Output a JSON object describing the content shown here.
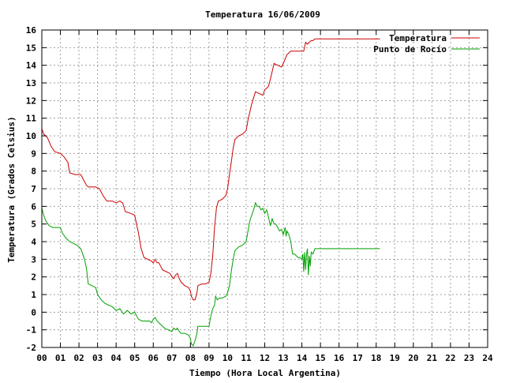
{
  "chart_data": {
    "type": "line",
    "title": "Temperatura 16/06/2009",
    "xlabel": "Tiempo (Hora Local Argentina)",
    "ylabel": "Temperatura (Grados Celsius)",
    "xlim": [
      0,
      24
    ],
    "ylim": [
      -2,
      16
    ],
    "x_ticks": [
      "00",
      "01",
      "02",
      "03",
      "04",
      "05",
      "06",
      "07",
      "08",
      "09",
      "10",
      "11",
      "12",
      "13",
      "14",
      "15",
      "16",
      "17",
      "18",
      "19",
      "20",
      "21",
      "22",
      "23",
      "24"
    ],
    "y_ticks": [
      "-2",
      "-1",
      "0",
      "1",
      "2",
      "3",
      "4",
      "5",
      "6",
      "7",
      "8",
      "9",
      "10",
      "11",
      "12",
      "13",
      "14",
      "15",
      "16"
    ],
    "grid": true,
    "legend_position": "top-right",
    "series": [
      {
        "name": "Temperatura",
        "color": "#cc0000",
        "points": [
          [
            0.0,
            10.4
          ],
          [
            0.1,
            10.1
          ],
          [
            0.3,
            9.9
          ],
          [
            0.5,
            9.4
          ],
          [
            0.7,
            9.1
          ],
          [
            1.0,
            9.0
          ],
          [
            1.2,
            8.8
          ],
          [
            1.4,
            8.5
          ],
          [
            1.5,
            7.9
          ],
          [
            1.8,
            7.8
          ],
          [
            2.1,
            7.8
          ],
          [
            2.2,
            7.6
          ],
          [
            2.4,
            7.2
          ],
          [
            2.5,
            7.1
          ],
          [
            2.7,
            7.1
          ],
          [
            2.9,
            7.1
          ],
          [
            3.1,
            7.0
          ],
          [
            3.3,
            6.6
          ],
          [
            3.5,
            6.3
          ],
          [
            3.8,
            6.3
          ],
          [
            4.0,
            6.2
          ],
          [
            4.2,
            6.3
          ],
          [
            4.35,
            6.2
          ],
          [
            4.5,
            5.7
          ],
          [
            4.8,
            5.6
          ],
          [
            5.0,
            5.5
          ],
          [
            5.2,
            4.5
          ],
          [
            5.35,
            3.6
          ],
          [
            5.5,
            3.1
          ],
          [
            5.7,
            3.0
          ],
          [
            5.9,
            2.9
          ],
          [
            6.0,
            2.8
          ],
          [
            6.1,
            3.0
          ],
          [
            6.2,
            2.8
          ],
          [
            6.3,
            2.8
          ],
          [
            6.4,
            2.6
          ],
          [
            6.5,
            2.4
          ],
          [
            6.7,
            2.3
          ],
          [
            6.9,
            2.2
          ],
          [
            7.0,
            2.0
          ],
          [
            7.1,
            1.9
          ],
          [
            7.2,
            2.1
          ],
          [
            7.3,
            2.2
          ],
          [
            7.4,
            1.9
          ],
          [
            7.5,
            1.7
          ],
          [
            7.7,
            1.5
          ],
          [
            7.9,
            1.4
          ],
          [
            8.0,
            1.2
          ],
          [
            8.05,
            0.9
          ],
          [
            8.15,
            0.7
          ],
          [
            8.25,
            0.7
          ],
          [
            8.35,
            1.1
          ],
          [
            8.4,
            1.5
          ],
          [
            8.6,
            1.6
          ],
          [
            8.8,
            1.6
          ],
          [
            9.0,
            1.7
          ],
          [
            9.1,
            2.2
          ],
          [
            9.2,
            3.2
          ],
          [
            9.3,
            4.8
          ],
          [
            9.4,
            5.9
          ],
          [
            9.5,
            6.3
          ],
          [
            9.7,
            6.4
          ],
          [
            9.9,
            6.6
          ],
          [
            10.0,
            7.0
          ],
          [
            10.1,
            7.8
          ],
          [
            10.2,
            8.5
          ],
          [
            10.3,
            9.3
          ],
          [
            10.4,
            9.8
          ],
          [
            10.6,
            10.0
          ],
          [
            10.8,
            10.1
          ],
          [
            11.0,
            10.3
          ],
          [
            11.1,
            10.9
          ],
          [
            11.3,
            11.8
          ],
          [
            11.5,
            12.5
          ],
          [
            11.7,
            12.4
          ],
          [
            11.9,
            12.3
          ],
          [
            12.0,
            12.6
          ],
          [
            12.2,
            12.8
          ],
          [
            12.3,
            13.2
          ],
          [
            12.5,
            14.1
          ],
          [
            12.7,
            14.0
          ],
          [
            12.9,
            13.9
          ],
          [
            13.0,
            14.1
          ],
          [
            13.2,
            14.6
          ],
          [
            13.4,
            14.8
          ],
          [
            13.6,
            14.8
          ],
          [
            13.9,
            14.8
          ],
          [
            14.1,
            14.8
          ],
          [
            14.2,
            15.3
          ],
          [
            14.3,
            15.2
          ],
          [
            14.4,
            15.3
          ],
          [
            14.5,
            15.4
          ],
          [
            14.6,
            15.4
          ],
          [
            14.7,
            15.5
          ],
          [
            15.0,
            15.5
          ],
          [
            16.0,
            15.5
          ],
          [
            17.0,
            15.5
          ],
          [
            18.2,
            15.5
          ]
        ]
      },
      {
        "name": "Punto de Rocío",
        "color": "#00a000",
        "points": [
          [
            0.0,
            5.9
          ],
          [
            0.1,
            5.5
          ],
          [
            0.2,
            5.2
          ],
          [
            0.4,
            4.9
          ],
          [
            0.6,
            4.8
          ],
          [
            0.8,
            4.8
          ],
          [
            1.0,
            4.8
          ],
          [
            1.1,
            4.5
          ],
          [
            1.3,
            4.2
          ],
          [
            1.5,
            4.0
          ],
          [
            1.7,
            3.9
          ],
          [
            1.9,
            3.8
          ],
          [
            2.1,
            3.6
          ],
          [
            2.3,
            3.0
          ],
          [
            2.4,
            2.5
          ],
          [
            2.5,
            1.6
          ],
          [
            2.7,
            1.5
          ],
          [
            2.9,
            1.4
          ],
          [
            3.0,
            1.0
          ],
          [
            3.2,
            0.7
          ],
          [
            3.4,
            0.5
          ],
          [
            3.6,
            0.4
          ],
          [
            3.8,
            0.3
          ],
          [
            4.0,
            0.1
          ],
          [
            4.2,
            0.2
          ],
          [
            4.4,
            -0.1
          ],
          [
            4.6,
            0.1
          ],
          [
            4.8,
            -0.1
          ],
          [
            5.0,
            0.0
          ],
          [
            5.2,
            -0.4
          ],
          [
            5.4,
            -0.5
          ],
          [
            5.6,
            -0.5
          ],
          [
            5.8,
            -0.5
          ],
          [
            5.9,
            -0.6
          ],
          [
            6.0,
            -0.4
          ],
          [
            6.1,
            -0.3
          ],
          [
            6.2,
            -0.5
          ],
          [
            6.4,
            -0.7
          ],
          [
            6.6,
            -0.9
          ],
          [
            6.8,
            -1.0
          ],
          [
            7.0,
            -1.1
          ],
          [
            7.1,
            -0.9
          ],
          [
            7.2,
            -1.0
          ],
          [
            7.3,
            -0.9
          ],
          [
            7.4,
            -1.1
          ],
          [
            7.5,
            -1.2
          ],
          [
            7.7,
            -1.2
          ],
          [
            7.9,
            -1.3
          ],
          [
            8.0,
            -1.5
          ],
          [
            8.05,
            -1.8
          ],
          [
            8.15,
            -1.9
          ],
          [
            8.25,
            -1.6
          ],
          [
            8.35,
            -1.2
          ],
          [
            8.4,
            -0.8
          ],
          [
            8.6,
            -0.8
          ],
          [
            8.8,
            -0.8
          ],
          [
            9.0,
            -0.8
          ],
          [
            9.1,
            -0.2
          ],
          [
            9.2,
            0.2
          ],
          [
            9.3,
            0.4
          ],
          [
            9.35,
            0.9
          ],
          [
            9.45,
            0.7
          ],
          [
            9.55,
            0.8
          ],
          [
            9.7,
            0.8
          ],
          [
            9.9,
            0.9
          ],
          [
            10.0,
            1.1
          ],
          [
            10.1,
            1.5
          ],
          [
            10.2,
            2.3
          ],
          [
            10.3,
            3.0
          ],
          [
            10.4,
            3.5
          ],
          [
            10.6,
            3.7
          ],
          [
            10.8,
            3.8
          ],
          [
            11.0,
            4.0
          ],
          [
            11.1,
            4.6
          ],
          [
            11.2,
            5.2
          ],
          [
            11.4,
            5.8
          ],
          [
            11.5,
            6.2
          ],
          [
            11.6,
            6.0
          ],
          [
            11.7,
            6.0
          ],
          [
            11.8,
            5.8
          ],
          [
            11.9,
            5.9
          ],
          [
            12.0,
            5.6
          ],
          [
            12.1,
            5.8
          ],
          [
            12.2,
            5.4
          ],
          [
            12.3,
            4.9
          ],
          [
            12.4,
            5.3
          ],
          [
            12.5,
            5.0
          ],
          [
            12.6,
            5.0
          ],
          [
            12.7,
            4.8
          ],
          [
            12.8,
            4.6
          ],
          [
            12.9,
            4.7
          ],
          [
            13.0,
            4.4
          ],
          [
            13.1,
            4.8
          ],
          [
            13.15,
            4.3
          ],
          [
            13.2,
            4.6
          ],
          [
            13.3,
            4.4
          ],
          [
            13.4,
            4.0
          ],
          [
            13.5,
            3.3
          ],
          [
            13.6,
            3.3
          ],
          [
            13.7,
            3.2
          ],
          [
            13.8,
            3.1
          ],
          [
            13.9,
            3.1
          ],
          [
            14.0,
            3.0
          ],
          [
            14.05,
            3.3
          ],
          [
            14.1,
            2.3
          ],
          [
            14.15,
            3.4
          ],
          [
            14.2,
            2.4
          ],
          [
            14.25,
            3.3
          ],
          [
            14.3,
            3.6
          ],
          [
            14.35,
            2.1
          ],
          [
            14.4,
            3.2
          ],
          [
            14.45,
            2.6
          ],
          [
            14.5,
            3.4
          ],
          [
            14.6,
            3.3
          ],
          [
            14.7,
            3.6
          ],
          [
            15.0,
            3.6
          ],
          [
            16.0,
            3.6
          ],
          [
            17.0,
            3.6
          ],
          [
            18.2,
            3.6
          ]
        ]
      }
    ]
  }
}
